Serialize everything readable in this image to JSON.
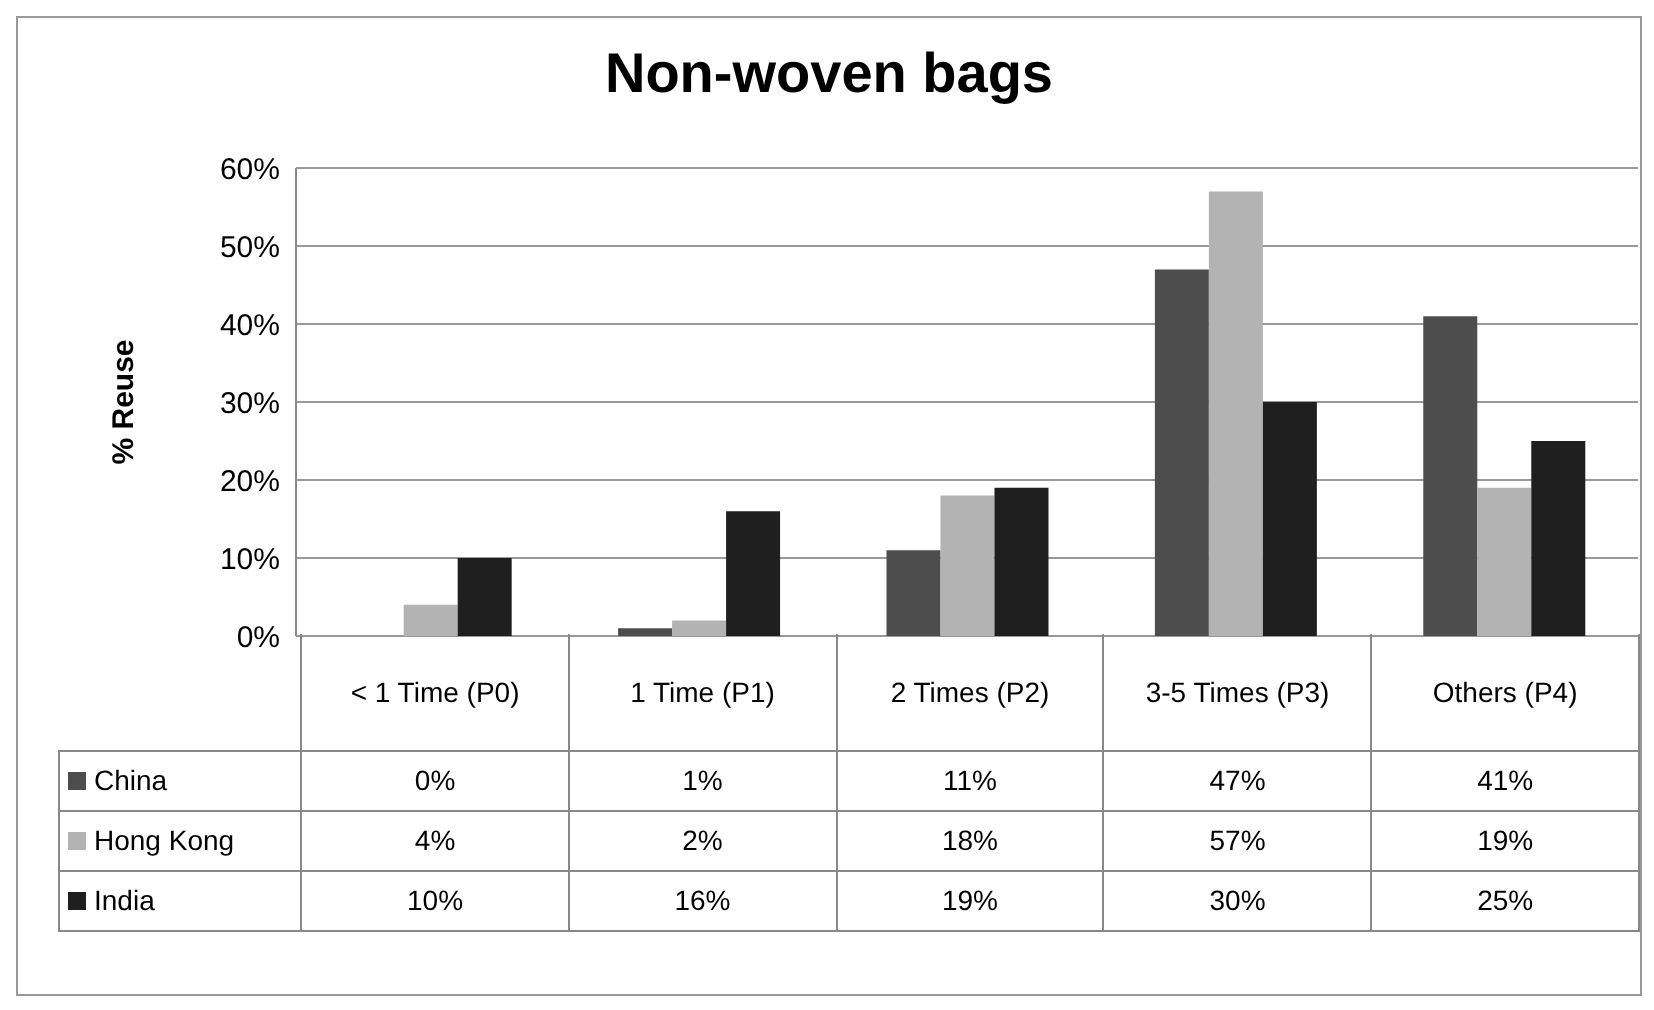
{
  "chart_data": {
    "type": "bar",
    "title": "Non-woven bags",
    "ylabel": "% Reuse",
    "categories": [
      "< 1 Time (P0)",
      "1 Time (P1)",
      "2 Times (P2)",
      "3-5 Times (P3)",
      "Others (P4)"
    ],
    "series": [
      {
        "name": "China",
        "color": "#4d4d4d",
        "values": [
          0,
          1,
          11,
          47,
          41
        ],
        "value_labels": [
          "0%",
          "1%",
          "11%",
          "47%",
          "41%"
        ]
      },
      {
        "name": "Hong Kong",
        "color": "#b3b3b3",
        "values": [
          4,
          2,
          18,
          57,
          19
        ],
        "value_labels": [
          "4%",
          "2%",
          "18%",
          "57%",
          "19%"
        ]
      },
      {
        "name": "India",
        "color": "#1f1f1f",
        "values": [
          10,
          16,
          19,
          30,
          25
        ],
        "value_labels": [
          "10%",
          "16%",
          "19%",
          "30%",
          "25%"
        ]
      }
    ],
    "ylim": [
      0,
      60
    ],
    "yticks": [
      {
        "value": 0,
        "label": "0%"
      },
      {
        "value": 10,
        "label": "10%"
      },
      {
        "value": 20,
        "label": "20%"
      },
      {
        "value": 30,
        "label": "30%"
      },
      {
        "value": 40,
        "label": "40%"
      },
      {
        "value": 50,
        "label": "50%"
      },
      {
        "value": 60,
        "label": "60%"
      }
    ],
    "grid": "y",
    "legend": "bottom"
  }
}
